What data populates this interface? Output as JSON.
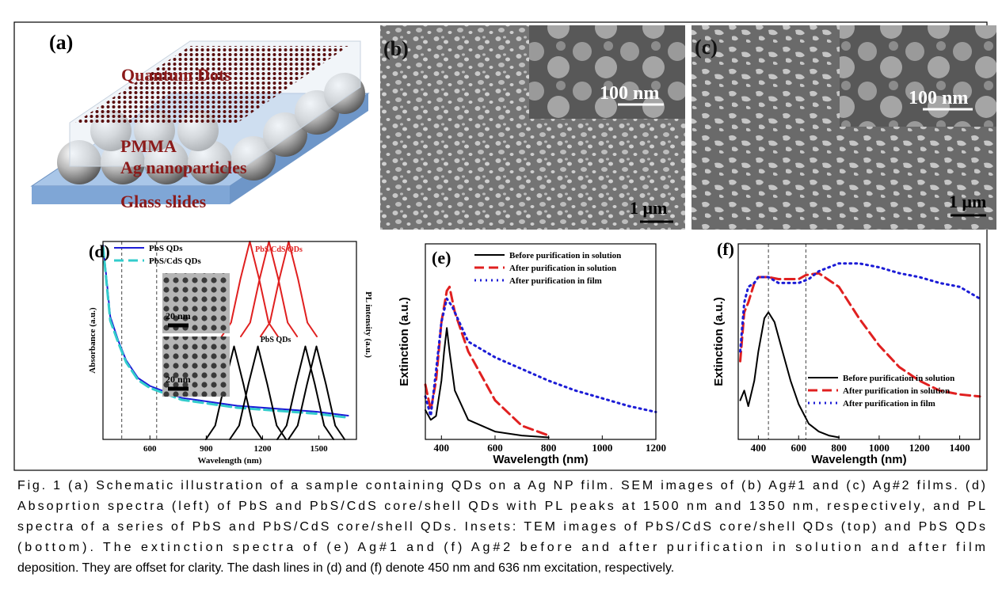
{
  "panels": {
    "a": {
      "label": "(a)",
      "texts": [
        "Quantum Dots",
        "PMMA",
        "Ag nanoparticles",
        "Glass slides"
      ]
    },
    "b": {
      "label": "(b)",
      "inset_scale": "100 nm",
      "scale": "1 μm"
    },
    "c": {
      "label": "(c)",
      "inset_scale": "100 nm",
      "scale": "1 μm"
    }
  },
  "chart_data": [
    {
      "type": "line",
      "panel_label": "(d)",
      "x_label": "Wavelength (nm)",
      "y_label": "Absorbance (a.u.)",
      "y2_label": "PL intensity (a.u.)",
      "xlim": [
        350,
        1700
      ],
      "xticks": [
        600,
        900,
        1200,
        1500
      ],
      "ylim": [
        0,
        1
      ],
      "vlines": [
        450,
        636
      ],
      "legend": "upper left",
      "annotations": [
        {
          "text": "PbS/CdS QDs",
          "color": "#e02020"
        },
        {
          "text": "PbS QDs",
          "color": "#000000"
        }
      ],
      "insets": [
        "20 nm",
        "20 nm"
      ],
      "series": [
        {
          "name": "PbS QDs",
          "color": "#1c1cd6",
          "style": "solid",
          "x": [
            351,
            368,
            389,
            431,
            473,
            537,
            600,
            769,
            1065,
            1487,
            1656
          ],
          "values": [
            0.98,
            0.82,
            0.62,
            0.5,
            0.4,
            0.31,
            0.27,
            0.21,
            0.17,
            0.14,
            0.12
          ]
        },
        {
          "name": "PbS/CdS QDs",
          "color": "#33cccc",
          "style": "dashed",
          "x": [
            351,
            368,
            389,
            431,
            473,
            537,
            600,
            769,
            1065,
            1487,
            1656
          ],
          "values": [
            0.97,
            0.8,
            0.6,
            0.49,
            0.39,
            0.3,
            0.26,
            0.2,
            0.16,
            0.13,
            0.11
          ]
        },
        {
          "color": "#e02020",
          "style": "solid",
          "x": [
            982,
            1032,
            1082,
            1132,
            1182,
            1232,
            1282
          ],
          "values": [
            0.52,
            0.59,
            0.81,
            1.0,
            0.81,
            0.59,
            0.52
          ]
        },
        {
          "color": "#e02020",
          "style": "solid",
          "x": [
            1084,
            1134,
            1184,
            1234,
            1284,
            1334,
            1384
          ],
          "values": [
            0.52,
            0.59,
            0.81,
            1.0,
            0.81,
            0.59,
            0.52
          ]
        },
        {
          "color": "#e02020",
          "style": "solid",
          "x": [
            1189,
            1239,
            1289,
            1339,
            1389,
            1439,
            1489
          ],
          "values": [
            0.52,
            0.59,
            0.81,
            1.0,
            0.81,
            0.59,
            0.52
          ]
        },
        {
          "color": "#000000",
          "style": "solid",
          "x": [
            898,
            948,
            998,
            1048,
            1098,
            1148,
            1198
          ],
          "values": [
            0,
            0.07,
            0.28,
            0.47,
            0.28,
            0.07,
            0
          ]
        },
        {
          "color": "#000000",
          "style": "solid",
          "x": [
            1025,
            1075,
            1125,
            1175,
            1225,
            1275,
            1325
          ],
          "values": [
            0,
            0.07,
            0.28,
            0.47,
            0.28,
            0.07,
            0
          ]
        },
        {
          "color": "#000000",
          "style": "solid",
          "x": [
            1278,
            1328,
            1378,
            1428,
            1478,
            1528,
            1578
          ],
          "values": [
            0,
            0.07,
            0.28,
            0.47,
            0.28,
            0.07,
            0
          ]
        },
        {
          "color": "#000000",
          "style": "solid",
          "x": [
            1337,
            1387,
            1437,
            1487,
            1537,
            1587,
            1637
          ],
          "values": [
            0,
            0.07,
            0.28,
            0.47,
            0.28,
            0.07,
            0
          ]
        }
      ]
    },
    {
      "type": "line",
      "panel_label": "(e)",
      "x_label": "Wavelength (nm)",
      "y_label": "Extinction (a.u.)",
      "xlim": [
        340,
        1200
      ],
      "xticks": [
        400,
        600,
        800,
        1000,
        1200
      ],
      "ylim": [
        0,
        1
      ],
      "legend": "upper center",
      "series": [
        {
          "name": "Before purification in solution",
          "color": "#000000",
          "style": "solid",
          "x": [
            340,
            360,
            380,
            400,
            410,
            420,
            430,
            450,
            500,
            600,
            700,
            800
          ],
          "values": [
            0.15,
            0.1,
            0.12,
            0.3,
            0.45,
            0.57,
            0.45,
            0.25,
            0.1,
            0.04,
            0.02,
            0.01
          ]
        },
        {
          "name": "After purification in solution",
          "color": "#e02020",
          "style": "dashed",
          "x": [
            340,
            360,
            380,
            400,
            420,
            430,
            450,
            500,
            600,
            700,
            800
          ],
          "values": [
            0.28,
            0.15,
            0.3,
            0.6,
            0.76,
            0.78,
            0.65,
            0.45,
            0.2,
            0.07,
            0.02
          ]
        },
        {
          "name": "After purification in film",
          "color": "#1c1cd6",
          "style": "dotted",
          "x": [
            340,
            360,
            380,
            400,
            420,
            440,
            500,
            600,
            700,
            800,
            900,
            1000,
            1100,
            1200
          ],
          "values": [
            0.22,
            0.12,
            0.35,
            0.6,
            0.72,
            0.68,
            0.5,
            0.42,
            0.36,
            0.3,
            0.25,
            0.21,
            0.17,
            0.14
          ]
        }
      ]
    },
    {
      "type": "line",
      "panel_label": "(f)",
      "x_label": "Wavelength (nm)",
      "y_label": "Extinction (a.u.)",
      "xlim": [
        300,
        1500
      ],
      "xticks": [
        400,
        600,
        800,
        1000,
        1200,
        1400
      ],
      "ylim": [
        0,
        1
      ],
      "vlines": [
        450,
        636
      ],
      "legend": "lower right",
      "series": [
        {
          "name": "Before purification in solution",
          "color": "#000000",
          "style": "solid",
          "x": [
            310,
            330,
            350,
            380,
            400,
            430,
            450,
            480,
            520,
            560,
            600,
            650,
            700,
            750,
            800
          ],
          "values": [
            0.2,
            0.25,
            0.17,
            0.3,
            0.45,
            0.62,
            0.65,
            0.6,
            0.45,
            0.3,
            0.18,
            0.08,
            0.04,
            0.02,
            0.01
          ]
        },
        {
          "name": "After purification in solution",
          "color": "#e02020",
          "style": "dashed",
          "x": [
            310,
            330,
            350,
            380,
            400,
            450,
            500,
            550,
            600,
            636,
            700,
            800,
            900,
            1000,
            1100,
            1200,
            1300,
            1400,
            1500
          ],
          "values": [
            0.4,
            0.65,
            0.7,
            0.8,
            0.83,
            0.83,
            0.82,
            0.82,
            0.82,
            0.84,
            0.85,
            0.78,
            0.62,
            0.48,
            0.37,
            0.3,
            0.25,
            0.23,
            0.22
          ]
        },
        {
          "name": "After purification in film",
          "color": "#1c1cd6",
          "style": "dotted",
          "x": [
            310,
            330,
            350,
            380,
            400,
            450,
            500,
            550,
            600,
            650,
            700,
            800,
            900,
            1000,
            1100,
            1200,
            1300,
            1400,
            1500
          ],
          "values": [
            0.45,
            0.7,
            0.78,
            0.8,
            0.83,
            0.83,
            0.8,
            0.8,
            0.8,
            0.82,
            0.86,
            0.9,
            0.9,
            0.88,
            0.85,
            0.83,
            0.8,
            0.78,
            0.72
          ]
        }
      ]
    }
  ],
  "caption": [
    "Fig. 1 (a) Schematic illustration of a sample containing QDs on a Ag NP film. SEM images of (b) Ag#1 and (c) Ag#2 films. (d)",
    "Absoprtion spectra (left) of PbS and PbS/CdS core/shell QDs with PL peaks at 1500 nm and 1350 nm, respectively, and PL",
    "spectra of a series of PbS and PbS/CdS core/shell QDs. Insets: TEM images of PbS/CdS core/shell QDs (top) and PbS QDs",
    "(bottom). The extinction spectra of (e) Ag#1 and (f) Ag#2 before and after purification in solution and after film",
    "deposition. They are offset for clarity. The dash lines in (d) and (f) denote 450 nm and 636 nm excitation, respectively."
  ]
}
